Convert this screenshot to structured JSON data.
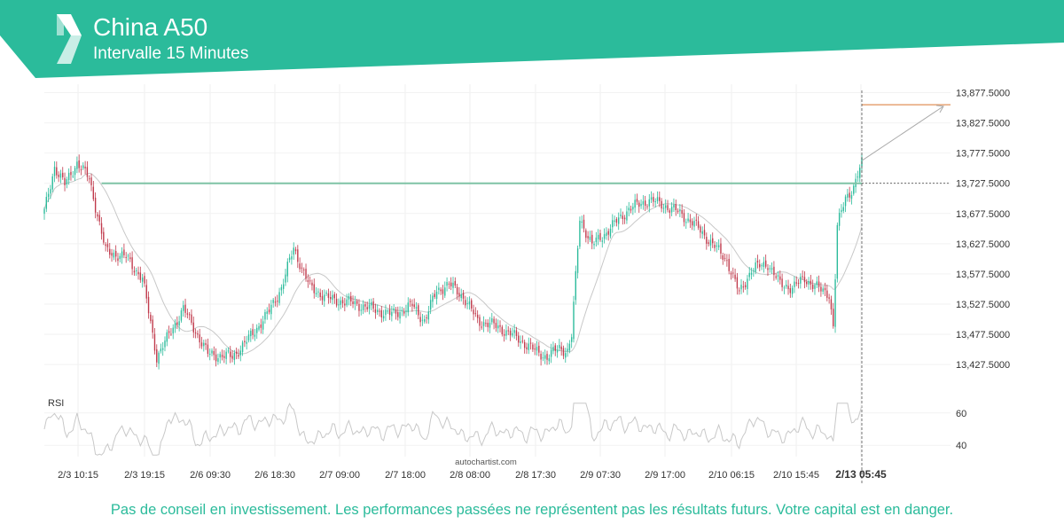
{
  "header": {
    "title": "China A50",
    "subtitle": "Intervalle 15 Minutes",
    "logo": "autochartist-logo-icon",
    "bg_color": "#2bbb9b"
  },
  "watermark": "autochartist.com",
  "disclaimer": "Pas de conseil en investissement. Les performances passées ne représentent pas les résultats futurs. Votre capital est en danger.",
  "colors": {
    "up_candle": "#2bbb9b",
    "down_candle": "#c0394b",
    "resistance_line": "#7fc3a6",
    "target_line": "#e0925a",
    "moving_average": "#c8c8c8",
    "rsi_line": "#c8c8c8"
  },
  "chart_data": {
    "type": "candlestick",
    "price_axis": {
      "ticks": [
        "13,877.5000",
        "13,827.5000",
        "13,777.5000",
        "13,727.5000",
        "13,677.5000",
        "13,627.5000",
        "13,577.5000",
        "13,527.5000",
        "13,477.5000",
        "13,427.5000"
      ],
      "range": [
        13402.5,
        13902.5
      ]
    },
    "time_axis": {
      "ticks": [
        "2/3 10:15",
        "2/3 19:15",
        "2/6 09:30",
        "2/6 18:30",
        "2/7 09:00",
        "2/7 18:00",
        "2/8 08:00",
        "2/8 17:30",
        "2/9 07:30",
        "2/9 17:00",
        "2/10 06:15",
        "2/10 15:45",
        "2/13 05:45"
      ],
      "current": "2/13 05:45"
    },
    "rsi": {
      "label": "RSI",
      "ticks": [
        "60",
        "40"
      ],
      "range": [
        33,
        67
      ]
    },
    "close_anchors": [
      [
        0,
        13680
      ],
      [
        5,
        13755
      ],
      [
        10,
        13725
      ],
      [
        16,
        13762
      ],
      [
        22,
        13735
      ],
      [
        30,
        13615
      ],
      [
        40,
        13605
      ],
      [
        48,
        13570
      ],
      [
        55,
        13440
      ],
      [
        60,
        13470
      ],
      [
        68,
        13520
      ],
      [
        80,
        13445
      ],
      [
        92,
        13440
      ],
      [
        100,
        13470
      ],
      [
        110,
        13515
      ],
      [
        116,
        13555
      ],
      [
        122,
        13620
      ],
      [
        130,
        13555
      ],
      [
        140,
        13535
      ],
      [
        150,
        13530
      ],
      [
        160,
        13520
      ],
      [
        170,
        13510
      ],
      [
        180,
        13525
      ],
      [
        186,
        13500
      ],
      [
        192,
        13550
      ],
      [
        198,
        13560
      ],
      [
        205,
        13540
      ],
      [
        212,
        13500
      ],
      [
        222,
        13490
      ],
      [
        232,
        13470
      ],
      [
        240,
        13450
      ],
      [
        246,
        13440
      ],
      [
        252,
        13455
      ],
      [
        256,
        13450
      ],
      [
        258,
        13475
      ],
      [
        262,
        13670
      ],
      [
        268,
        13625
      ],
      [
        276,
        13650
      ],
      [
        286,
        13685
      ],
      [
        296,
        13700
      ],
      [
        304,
        13690
      ],
      [
        310,
        13680
      ],
      [
        318,
        13660
      ],
      [
        326,
        13630
      ],
      [
        334,
        13600
      ],
      [
        340,
        13545
      ],
      [
        346,
        13585
      ],
      [
        354,
        13595
      ],
      [
        360,
        13560
      ],
      [
        366,
        13555
      ],
      [
        372,
        13570
      ],
      [
        380,
        13550
      ],
      [
        384,
        13545
      ],
      [
        386,
        13490
      ],
      [
        388,
        13655
      ],
      [
        392,
        13705
      ],
      [
        396,
        13720
      ],
      [
        400,
        13760
      ]
    ],
    "last_index": 400,
    "resistance": {
      "price": 13727.5,
      "from_index": 28,
      "to_index": 400
    },
    "target": {
      "price": 13857.5,
      "from_index": 400
    },
    "projection": {
      "from": [
        400,
        13765
      ],
      "to_price": 13855
    }
  }
}
